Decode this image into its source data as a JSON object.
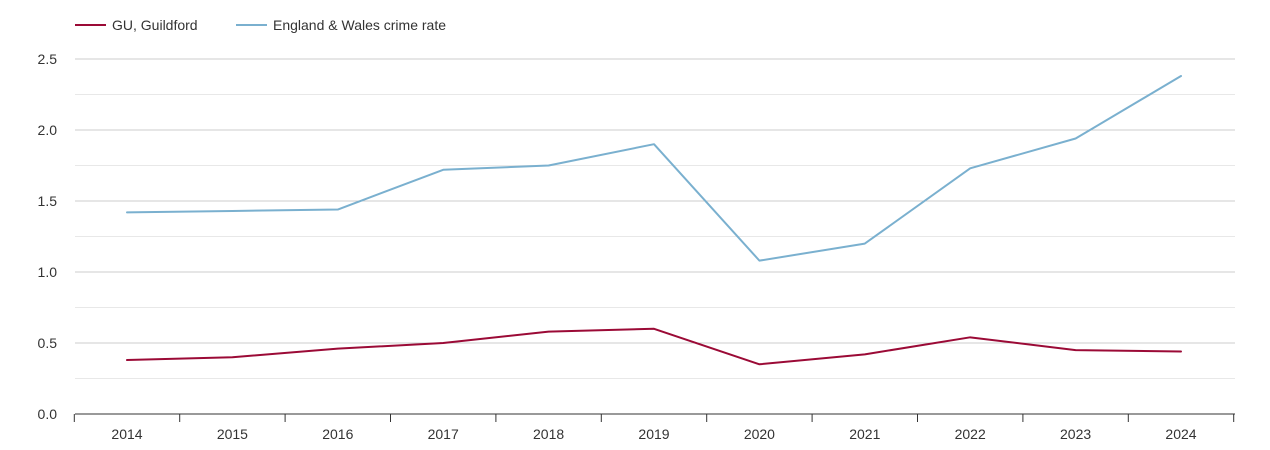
{
  "colors": {
    "guildford": "#9b0a36",
    "england_wales": "#7ab0cf",
    "grid_major": "#cccccc",
    "grid_minor": "#e8e8e8",
    "axis": "#333333",
    "text": "#333333"
  },
  "chart_data": {
    "type": "line",
    "title": "",
    "xlabel": "",
    "ylabel": "",
    "legend_position": "top-left",
    "grid": true,
    "x": [
      "2014",
      "2015",
      "2016",
      "2017",
      "2018",
      "2019",
      "2020",
      "2021",
      "2022",
      "2023",
      "2024"
    ],
    "ylim": [
      0,
      2.5
    ],
    "y_ticks": [
      "0.0",
      "0.5",
      "1.0",
      "1.5",
      "2.0",
      "2.5"
    ],
    "series": [
      {
        "name": "GU, Guildford",
        "color": "#9b0a36",
        "values": [
          0.38,
          0.4,
          0.46,
          0.5,
          0.58,
          0.6,
          0.35,
          0.42,
          0.54,
          0.45,
          0.44
        ]
      },
      {
        "name": "England & Wales crime rate",
        "color": "#7ab0cf",
        "values": [
          1.42,
          1.43,
          1.44,
          1.72,
          1.75,
          1.9,
          1.08,
          1.2,
          1.73,
          1.94,
          2.38
        ]
      }
    ]
  }
}
